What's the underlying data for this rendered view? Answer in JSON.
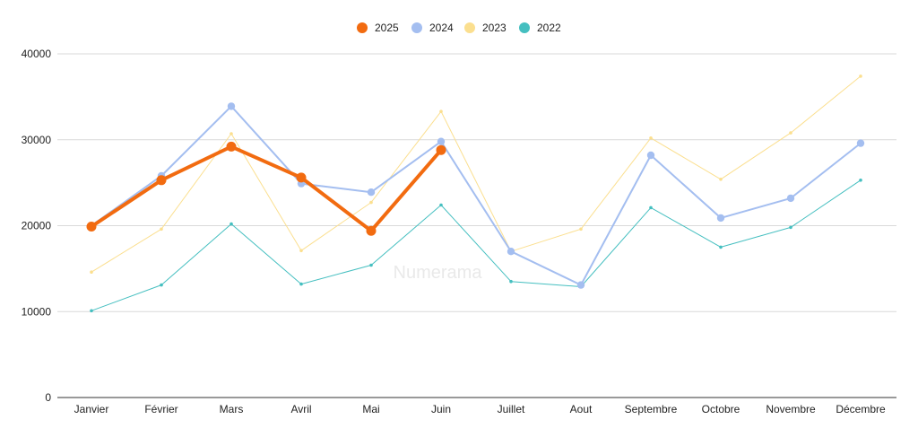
{
  "chart_data": {
    "type": "line",
    "categories": [
      "Janvier",
      "Février",
      "Mars",
      "Avril",
      "Mai",
      "Juin",
      "Juillet",
      "Aout",
      "Septembre",
      "Octobre",
      "Novembre",
      "Décembre"
    ],
    "series": [
      {
        "name": "2025",
        "color": "#f26b10",
        "values": [
          19900,
          25300,
          29200,
          25600,
          19400,
          28800,
          null,
          null,
          null,
          null,
          null,
          null
        ]
      },
      {
        "name": "2024",
        "color": "#a4bef0",
        "values": [
          20000,
          25800,
          33900,
          24900,
          23900,
          29800,
          17000,
          13100,
          28200,
          20900,
          23200,
          29600
        ]
      },
      {
        "name": "2023",
        "color": "#fbdf8f",
        "values": [
          14600,
          19600,
          30700,
          17100,
          22700,
          33300,
          17000,
          19600,
          30200,
          25400,
          30800,
          37400
        ]
      },
      {
        "name": "2022",
        "color": "#45bfc0",
        "values": [
          10100,
          13100,
          20200,
          13200,
          15400,
          22400,
          13500,
          12900,
          22100,
          17500,
          19800,
          25300
        ]
      }
    ],
    "ylim": [
      0,
      40000
    ],
    "yticks": [
      "0",
      "10000",
      "20000",
      "30000",
      "40000"
    ],
    "grid": true,
    "legend_position": "top-center",
    "title": "",
    "xlabel": "",
    "ylabel": ""
  },
  "watermark": "Numerama"
}
